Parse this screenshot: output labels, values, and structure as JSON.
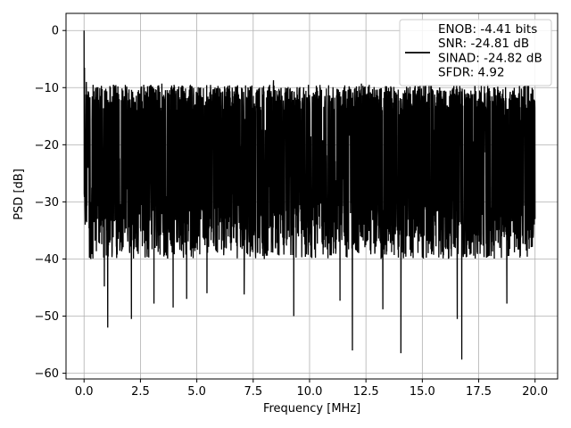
{
  "chart_data": {
    "type": "line",
    "title": "",
    "xlabel": "Frequency [MHz]",
    "ylabel": "PSD [dB]",
    "xlim": [
      -0.8,
      21.0
    ],
    "ylim": [
      -61,
      3
    ],
    "xticks": [
      0.0,
      2.5,
      5.0,
      7.5,
      10.0,
      12.5,
      15.0,
      17.5,
      20.0
    ],
    "xtick_labels": [
      "0.0",
      "2.5",
      "5.0",
      "7.5",
      "10.0",
      "12.5",
      "15.0",
      "17.5",
      "20.0"
    ],
    "yticks": [
      0,
      -10,
      -20,
      -30,
      -40,
      -50,
      -60
    ],
    "ytick_labels": [
      "0",
      "−10",
      "−20",
      "−30",
      "−40",
      "−50",
      "−60"
    ],
    "grid": true,
    "legend_position": "top-right",
    "legend": [
      "ENOB: -4.41 bits",
      "SNR: -24.81 dB",
      "SINAD: -24.82 dB",
      "SFDR: 4.92"
    ],
    "series": [
      {
        "name": "ENOB: -4.41 bits\nSNR: -24.81 dB\nSINAD: -24.82 dB\nSFDR: 4.92",
        "color": "#000000",
        "x_range": [
          0.0,
          20.0
        ],
        "envelope_upper_typical": -9.5,
        "envelope_lower_typical": -38.0,
        "x": [
          0.0,
          0.02,
          0.05,
          0.1,
          0.3,
          0.4,
          0.9,
          1.05,
          1.3,
          2.1,
          2.55,
          3.1,
          3.45,
          3.95,
          4.2,
          4.55,
          5.45,
          6.45,
          7.1,
          8.4,
          9.3,
          9.95,
          11.35,
          11.9,
          12.3,
          13.25,
          14.05,
          15.15,
          16.55,
          16.75,
          17.9,
          18.75,
          19.5,
          20.0
        ],
        "y": [
          0.0,
          -6.5,
          -34.0,
          -9.0,
          -40.0,
          -9.5,
          -44.8,
          -52.0,
          -9.5,
          -50.5,
          -9.8,
          -47.8,
          -9.3,
          -48.5,
          -9.8,
          -47.0,
          -46.0,
          -9.6,
          -46.2,
          -8.7,
          -50.0,
          -9.5,
          -47.3,
          -56.0,
          -9.3,
          -48.8,
          -56.5,
          -9.5,
          -50.5,
          -57.6,
          -9.4,
          -47.8,
          -9.8,
          -33.0
        ]
      }
    ]
  }
}
